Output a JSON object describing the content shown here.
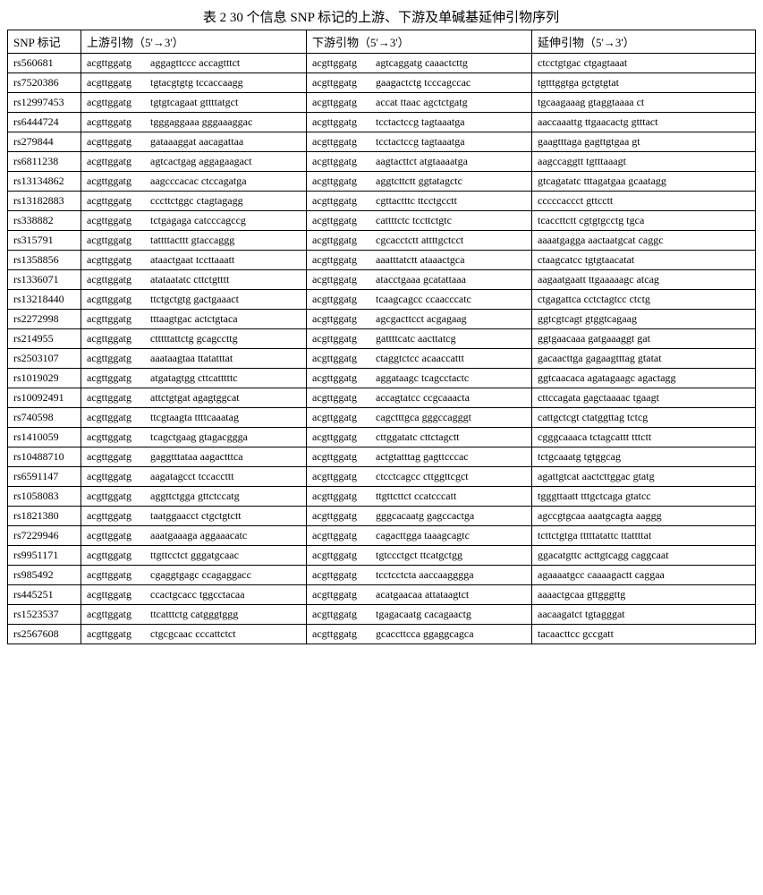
{
  "caption": "表 2  30 个信息 SNP 标记的上游、下游及单碱基延伸引物序列",
  "columns": [
    "SNP 标记",
    "上游引物（5'→3'）",
    "下游引物（5'→3'）",
    "延伸引物（5'→3'）"
  ],
  "tag": "acgttggatg",
  "rows": [
    {
      "snp": "rs560681",
      "up": "aggagttccc accagtttct",
      "down": "agtcaggatg caaactcttg",
      "ext": "ctcctgtgac ctgagtaaat"
    },
    {
      "snp": "rs7520386",
      "up": "tgtacgtgtg tccaccaagg",
      "down": "gaagactctg tcccagccac",
      "ext": "tgtttggtga gctgtgtat"
    },
    {
      "snp": "rs12997453",
      "up": "tgtgtcagaat gttttatgct",
      "down": "accat ttaac agctctgatg",
      "ext": "tgcaagaaag gtaggtaaaa ct"
    },
    {
      "snp": "rs6444724",
      "up": "tgggaggaaa gggaaaggac",
      "down": "tcctactccg tagtaaatga",
      "ext": "aaccaaattg ttgaacactg gtttact"
    },
    {
      "snp": "rs279844",
      "up": "gataaaggat aacagattaa",
      "down": "tcctactccg tagtaaatga",
      "ext": "gaagtttaga gagttgtgaa gt"
    },
    {
      "snp": "rs6811238",
      "up": "agtcactgag aggagaagact",
      "down": "aagtacttct atgtaaaatga",
      "ext": "aagccaggtt tgtttaaagt"
    },
    {
      "snp": "rs13134862",
      "up": "aagcccacac ctccagatga",
      "down": "aggtcttctt ggtatagctc",
      "ext": "gtcagatatc tttagatgaa gcaatagg"
    },
    {
      "snp": "rs13182883",
      "up": "cccttctggc ctagtagagg",
      "down": "cgttactttc ttcctgcctt",
      "ext": "cccccaccct gttcctt"
    },
    {
      "snp": "rs338882",
      "up": "tctgagaga catcccagccg",
      "down": "cattttctc tccttctgtc",
      "ext": "tcaccttctt cgtgtgcctg tgca"
    },
    {
      "snp": "rs315791",
      "up": "tattttacttt gtaccaggg",
      "down": "cgcacctctt attttgctcct",
      "ext": "aaaatgagga aactaatgcat caggc"
    },
    {
      "snp": "rs1358856",
      "up": "ataactgaat tccttaaatt",
      "down": "aaatttatctt ataaactgca",
      "ext": "ctaagcatcc tgtgtaacatat"
    },
    {
      "snp": "rs1336071",
      "up": "atataatatc cttctgtttt",
      "down": "atacctgaaa gcatattaaa",
      "ext": "aagaatgaatt ttgaaaaagc atcag"
    },
    {
      "snp": "rs13218440",
      "up": "ttctgctgtg gactgaaact",
      "down": "tcaagcagcc ccaacccatc",
      "ext": "ctgagattca cctctagtcc ctctg"
    },
    {
      "snp": "rs2272998",
      "up": "tttaagtgac actctgtaca",
      "down": "agcgacttcct acgagaag",
      "ext": "ggtcgtcagt gtggtcagaag"
    },
    {
      "snp": "rs214955",
      "up": "ctttttattctg gcagccttg",
      "down": "gattttcatc aacttatcg",
      "ext": "ggtgaacaaa gatgaaaggt gat"
    },
    {
      "snp": "rs2503107",
      "up": "aaataagtaa ttatatttat",
      "down": "ctaggtctcc acaaccattt",
      "ext": "gacaacttga gagaagtttag gtatat"
    },
    {
      "snp": "rs1019029",
      "up": "atgatagtgg cttcatttttc",
      "down": "aggataagc tcagcctactc",
      "ext": "ggtcaacaca agatagaagc agactagg"
    },
    {
      "snp": "rs10092491",
      "up": "attctgtgat agagtggcat",
      "down": "accagtatcc ccgcaaacta",
      "ext": "cttccagata gagctaaaac tgaagt"
    },
    {
      "snp": "rs740598",
      "up": "ttcgtaagta ttttcaaatag",
      "down": "cagctttgca gggccagggt",
      "ext": "cattgctcgt ctatggttag tctcg"
    },
    {
      "snp": "rs1410059",
      "up": "tcagctgaag gtagacggga",
      "down": "cttggatatc cttctagctt",
      "ext": "cgggcaaaca tctagcattt tttctt"
    },
    {
      "snp": "rs10488710",
      "up": "gaggtttataa aagactttca",
      "down": "actgtatttag gagttcccac",
      "ext": "tctgcaaatg tgtggcag"
    },
    {
      "snp": "rs6591147",
      "up": "aagatagcct tccaccttt",
      "down": "ctcctcagcc cttggttcgct",
      "ext": "agattgtcat aactcttggac gtatg"
    },
    {
      "snp": "rs1058083",
      "up": "aggttctgga gttctccatg",
      "down": "ttgttcttct ccatcccatt",
      "ext": "tgggttaatt tttgctcaga gtatcc"
    },
    {
      "snp": "rs1821380",
      "up": "taatggaacct ctgctgtctt",
      "down": "gggcacaatg gagccactga",
      "ext": "agccgtgcaa aaatgcagta aaggg"
    },
    {
      "snp": "rs7229946",
      "up": "aaatgaaaga aggaaacatc",
      "down": "cagacttgga taaagcagtc",
      "ext": "tcttctgtga tttttatattc ttattttat"
    },
    {
      "snp": "rs9951171",
      "up": "ttgttcctct gggatgcaac",
      "down": "tgtccctgct ttcatgctgg",
      "ext": "ggacatgttc acttgtcagg caggcaat"
    },
    {
      "snp": "rs985492",
      "up": "cgaggtgagc ccagaggacc",
      "down": "tcctcctcta aaccaagggga",
      "ext": "agaaaatgcc caaaagactt caggaa"
    },
    {
      "snp": "rs445251",
      "up": "ccactgcacc tggcctacaa",
      "down": "acatgaacaa attataagtct",
      "ext": "aaaactgcaa gttgggttg"
    },
    {
      "snp": "rs1523537",
      "up": "ttcatttctg catgggtggg",
      "down": "tgagacaatg cacagaactg",
      "ext": "aacaagatct tgtagggat"
    },
    {
      "snp": "rs2567608",
      "up": "ctgcgcaac cccattctct",
      "down": "gcaccttcca ggaggcagca",
      "ext": "tacaacttcc gccgatt"
    }
  ]
}
